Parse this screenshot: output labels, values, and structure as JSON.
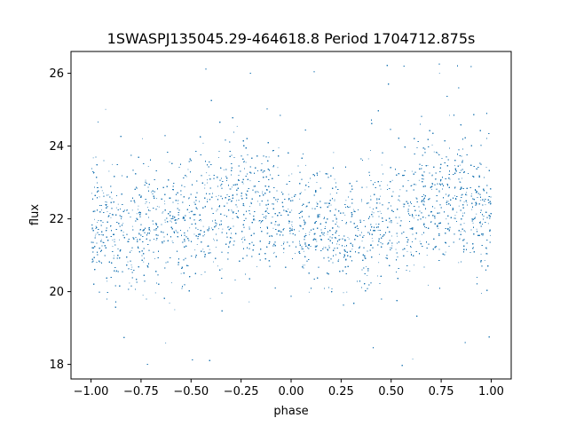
{
  "chart_data": {
    "type": "scatter",
    "title": "1SWASPJ135045.29-464618.8 Period 1704712.875s",
    "xlabel": "phase",
    "ylabel": "flux",
    "xlim": [
      -1.1,
      1.1
    ],
    "ylim": [
      17.6,
      26.6
    ],
    "xticks": [
      -1.0,
      -0.75,
      -0.5,
      -0.25,
      0.0,
      0.25,
      0.5,
      0.75,
      1.0
    ],
    "xtick_labels": [
      "−1.00",
      "−0.75",
      "−0.50",
      "−0.25",
      "0.00",
      "0.25",
      "0.50",
      "0.75",
      "1.00"
    ],
    "yticks": [
      18,
      20,
      22,
      24,
      26
    ],
    "ytick_labels": [
      "18",
      "20",
      "22",
      "24",
      "26"
    ],
    "grid": false,
    "marker_color": "#1f77b4",
    "series": [
      {
        "x_range": [
          -1.0,
          1.0
        ],
        "approx_point_count": 20000,
        "trend": {
          "phase": [
            -1.0,
            -0.75,
            -0.5,
            -0.25,
            0.0,
            0.25,
            0.5,
            0.75,
            1.0
          ],
          "flux_center": [
            21.8,
            21.7,
            21.9,
            22.6,
            22.0,
            21.6,
            21.9,
            22.6,
            22.2
          ],
          "flux_spread": [
            0.9,
            0.8,
            0.9,
            0.9,
            0.8,
            0.8,
            0.9,
            0.9,
            0.9
          ]
        }
      }
    ]
  }
}
